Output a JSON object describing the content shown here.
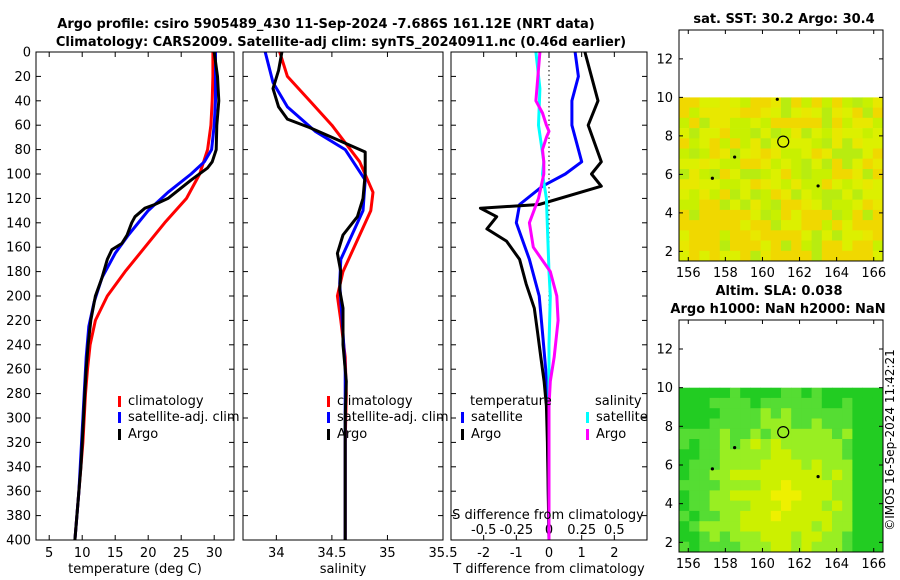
{
  "header": {
    "title_line1": "Argo profile: csiro 5905489_430 11-Sep-2024 -7.686S 161.12E (NRT data)",
    "title_line2": "Climatology: CARS2009. Satellite-adj clim: synTS_20240911.nc (0.46d earlier)"
  },
  "copyright": "©IMOS 16-Sep-2024 11:42:21",
  "colors": {
    "climatology": "#ff0000",
    "satellite": "#0000ff",
    "argo": "#000000",
    "sat_diff_s": "#00ffff",
    "argo_diff_s": "#ff00ff"
  },
  "chart_data": [
    {
      "id": "temperature",
      "type": "line",
      "xlabel": "temperature (deg C)",
      "xlim": [
        3,
        33
      ],
      "xticks": [
        5,
        10,
        15,
        20,
        25,
        30
      ],
      "ylim": [
        0,
        400
      ],
      "yticks": [
        0,
        20,
        40,
        60,
        80,
        100,
        120,
        140,
        160,
        180,
        200,
        220,
        240,
        260,
        280,
        300,
        320,
        340,
        360,
        380,
        400
      ],
      "legend": [
        "climatology",
        "satellite-adj. clim",
        "Argo"
      ],
      "series": [
        {
          "name": "climatology",
          "color": "#ff0000",
          "points": [
            [
              29.8,
              0
            ],
            [
              29.8,
              20
            ],
            [
              29.7,
              40
            ],
            [
              29.5,
              60
            ],
            [
              29.0,
              80
            ],
            [
              27.8,
              100
            ],
            [
              25.8,
              120
            ],
            [
              22.5,
              140
            ],
            [
              19.5,
              160
            ],
            [
              16.5,
              180
            ],
            [
              13.8,
              200
            ],
            [
              12.0,
              220
            ],
            [
              11.2,
              240
            ],
            [
              10.8,
              260
            ],
            [
              10.5,
              280
            ],
            [
              10.3,
              300
            ],
            [
              10.1,
              320
            ],
            [
              9.8,
              340
            ],
            [
              9.5,
              360
            ],
            [
              9.2,
              380
            ],
            [
              8.9,
              400
            ]
          ]
        },
        {
          "name": "satellite-adj. clim",
          "color": "#0000ff",
          "points": [
            [
              30.2,
              0
            ],
            [
              30.2,
              20
            ],
            [
              30.2,
              40
            ],
            [
              30.0,
              60
            ],
            [
              29.6,
              80
            ],
            [
              28.5,
              90
            ],
            [
              26.5,
              100
            ],
            [
              23.0,
              115
            ],
            [
              20.0,
              130
            ],
            [
              17.0,
              150
            ],
            [
              15.0,
              165
            ],
            [
              13.0,
              185
            ],
            [
              11.8,
              205
            ],
            [
              11.0,
              225
            ],
            [
              10.6,
              250
            ],
            [
              10.3,
              280
            ],
            [
              10.1,
              300
            ],
            [
              9.8,
              330
            ],
            [
              9.5,
              360
            ],
            [
              9.2,
              380
            ],
            [
              8.9,
              400
            ]
          ]
        },
        {
          "name": "Argo",
          "color": "#000000",
          "points": [
            [
              30.0,
              0
            ],
            [
              30.5,
              20
            ],
            [
              30.7,
              40
            ],
            [
              30.4,
              60
            ],
            [
              30.3,
              80
            ],
            [
              29.7,
              90
            ],
            [
              29.0,
              95
            ],
            [
              26.5,
              105
            ],
            [
              23.0,
              120
            ],
            [
              21.0,
              125
            ],
            [
              19.5,
              128
            ],
            [
              18.0,
              135
            ],
            [
              17.5,
              140
            ],
            [
              16.8,
              150
            ],
            [
              16.0,
              157
            ],
            [
              14.5,
              162
            ],
            [
              13.8,
              170
            ],
            [
              13.0,
              185
            ],
            [
              12.0,
              200
            ],
            [
              11.3,
              220
            ],
            [
              10.9,
              240
            ],
            [
              10.6,
              260
            ],
            [
              10.4,
              280
            ],
            [
              10.2,
              300
            ],
            [
              10.0,
              320
            ],
            [
              9.8,
              340
            ],
            [
              9.5,
              360
            ],
            [
              9.2,
              380
            ],
            [
              8.9,
              400
            ]
          ]
        }
      ]
    },
    {
      "id": "salinity",
      "type": "line",
      "xlabel": "salinity",
      "xlim": [
        33.7,
        35.5
      ],
      "xticks": [
        34,
        34.5,
        35,
        35.5
      ],
      "ylim": [
        0,
        400
      ],
      "legend": [
        "climatology",
        "satellite-adj. clim",
        "Argo"
      ],
      "series": [
        {
          "name": "climatology",
          "color": "#ff0000",
          "points": [
            [
              34.03,
              0
            ],
            [
              34.1,
              20
            ],
            [
              34.3,
              40
            ],
            [
              34.5,
              60
            ],
            [
              34.75,
              90
            ],
            [
              34.87,
              115
            ],
            [
              34.85,
              130
            ],
            [
              34.75,
              150
            ],
            [
              34.6,
              180
            ],
            [
              34.55,
              200
            ],
            [
              34.58,
              220
            ],
            [
              34.62,
              250
            ],
            [
              34.63,
              280
            ],
            [
              34.62,
              320
            ],
            [
              34.62,
              360
            ],
            [
              34.62,
              400
            ]
          ]
        },
        {
          "name": "satellite-adj. clim",
          "color": "#0000ff",
          "points": [
            [
              33.9,
              0
            ],
            [
              33.97,
              25
            ],
            [
              34.1,
              45
            ],
            [
              34.35,
              65
            ],
            [
              34.62,
              80
            ],
            [
              34.8,
              105
            ],
            [
              34.78,
              130
            ],
            [
              34.68,
              150
            ],
            [
              34.58,
              170
            ],
            [
              34.57,
              190
            ],
            [
              34.6,
              230
            ],
            [
              34.62,
              260
            ],
            [
              34.62,
              300
            ],
            [
              34.62,
              340
            ],
            [
              34.62,
              400
            ]
          ]
        },
        {
          "name": "Argo",
          "color": "#000000",
          "points": [
            [
              34.05,
              0
            ],
            [
              34.02,
              15
            ],
            [
              33.97,
              30
            ],
            [
              34.02,
              45
            ],
            [
              34.1,
              55
            ],
            [
              34.3,
              62
            ],
            [
              34.55,
              72
            ],
            [
              34.8,
              82
            ],
            [
              34.8,
              100
            ],
            [
              34.78,
              120
            ],
            [
              34.73,
              135
            ],
            [
              34.6,
              150
            ],
            [
              34.55,
              165
            ],
            [
              34.58,
              180
            ],
            [
              34.57,
              195
            ],
            [
              34.6,
              210
            ],
            [
              34.6,
              240
            ],
            [
              34.63,
              270
            ],
            [
              34.62,
              300
            ],
            [
              34.62,
              340
            ],
            [
              34.62,
              400
            ]
          ]
        }
      ]
    },
    {
      "id": "differences",
      "type": "line",
      "xlabel": "T difference from climatology",
      "xlabel_top": "S difference from climatology",
      "xlim": [
        -3,
        3
      ],
      "xticks": [
        -2,
        -1,
        0,
        1,
        2
      ],
      "s_scale": 0.25,
      "s_ticks": [
        -0.5,
        -0.25,
        0,
        0.25,
        0.5
      ],
      "s_tick_labels": [
        "-0.5",
        "-0.25",
        "0",
        "0.25",
        "0.5"
      ],
      "ylim": [
        0,
        400
      ],
      "legend_left_title": "temperature",
      "legend_right_title": "salinity",
      "legend_left": [
        "satellite",
        "Argo"
      ],
      "legend_right": [
        "satellite",
        "Argo"
      ],
      "series": [
        {
          "name": "T satellite",
          "color": "#0000ff",
          "points": [
            [
              0.8,
              0
            ],
            [
              0.9,
              20
            ],
            [
              0.7,
              40
            ],
            [
              0.7,
              60
            ],
            [
              1.0,
              90
            ],
            [
              0.5,
              100
            ],
            [
              -0.2,
              110
            ],
            [
              -0.9,
              125
            ],
            [
              -1.0,
              140
            ],
            [
              -0.6,
              170
            ],
            [
              -0.3,
              200
            ],
            [
              -0.2,
              230
            ],
            [
              -0.1,
              260
            ],
            [
              -0.05,
              300
            ],
            [
              0,
              400
            ]
          ]
        },
        {
          "name": "T Argo",
          "color": "#000000",
          "points": [
            [
              1.1,
              0
            ],
            [
              1.5,
              40
            ],
            [
              1.2,
              60
            ],
            [
              1.6,
              90
            ],
            [
              1.3,
              100
            ],
            [
              1.6,
              110
            ],
            [
              -0.3,
              125
            ],
            [
              -2.1,
              128
            ],
            [
              -1.6,
              135
            ],
            [
              -1.9,
              145
            ],
            [
              -1.3,
              155
            ],
            [
              -0.9,
              170
            ],
            [
              -0.7,
              190
            ],
            [
              -0.45,
              210
            ],
            [
              -0.35,
              230
            ],
            [
              -0.25,
              250
            ],
            [
              -0.15,
              270
            ],
            [
              -0.08,
              290
            ],
            [
              -0.05,
              320
            ],
            [
              0,
              400
            ]
          ]
        },
        {
          "name": "S satellite",
          "color": "#00ffff",
          "points": [
            [
              -0.1,
              0
            ],
            [
              -0.07,
              30
            ],
            [
              -0.08,
              60
            ],
            [
              -0.04,
              90
            ],
            [
              -0.05,
              100
            ],
            [
              -0.02,
              120
            ],
            [
              -0.01,
              150
            ],
            [
              0,
              180
            ],
            [
              0.01,
              200
            ],
            [
              0,
              240
            ],
            [
              0,
              300
            ],
            [
              0,
              400
            ]
          ]
        },
        {
          "name": "S Argo",
          "color": "#ff00ff",
          "points": [
            [
              -0.07,
              0
            ],
            [
              -0.1,
              40
            ],
            [
              -0.05,
              50
            ],
            [
              -0.02,
              60
            ],
            [
              0,
              65
            ],
            [
              -0.02,
              70
            ],
            [
              -0.05,
              80
            ],
            [
              -0.04,
              90
            ],
            [
              -0.04,
              100
            ],
            [
              -0.08,
              120
            ],
            [
              -0.15,
              140
            ],
            [
              -0.12,
              160
            ],
            [
              0.01,
              180
            ],
            [
              0.06,
              200
            ],
            [
              0.07,
              220
            ],
            [
              0.04,
              250
            ],
            [
              0.01,
              270
            ],
            [
              0,
              290
            ],
            [
              0,
              320
            ],
            [
              0,
              400
            ]
          ]
        }
      ]
    },
    {
      "id": "sst_map",
      "type": "heatmap",
      "title": "sat. SST: 30.2 Argo: 30.4",
      "xlim": [
        155.5,
        166.5
      ],
      "ylim": [
        1.5,
        13.5
      ],
      "data_ymax": 10,
      "xticks": [
        156,
        158,
        160,
        162,
        164,
        166
      ],
      "yticks": [
        2,
        4,
        6,
        8,
        10,
        12
      ],
      "argo_position": [
        161.12,
        7.7
      ],
      "palette": [
        "#c8f000",
        "#dcf000",
        "#b8ec10",
        "#e8e800",
        "#f0d800"
      ],
      "dots": [
        [
          158.5,
          6.9
        ],
        [
          157.3,
          5.8
        ],
        [
          163.0,
          5.4
        ],
        [
          160.8,
          9.9
        ]
      ]
    },
    {
      "id": "sla_map",
      "type": "heatmap",
      "title_line1": "Altim. SLA: 0.038",
      "title_line2": "Argo h1000: NaN h2000: NaN",
      "xlim": [
        155.5,
        166.5
      ],
      "ylim": [
        1.5,
        13.5
      ],
      "data_ymax": 10,
      "xticks": [
        156,
        158,
        160,
        162,
        164,
        166
      ],
      "yticks": [
        2,
        4,
        6,
        8,
        10,
        12
      ],
      "argo_position": [
        161.12,
        7.7
      ],
      "palette": [
        "#22cc22",
        "#55dd33",
        "#99ee22",
        "#ccf000",
        "#eef000"
      ],
      "dots": [
        [
          158.5,
          6.9
        ],
        [
          157.3,
          5.8
        ],
        [
          163.0,
          5.4
        ]
      ]
    }
  ]
}
